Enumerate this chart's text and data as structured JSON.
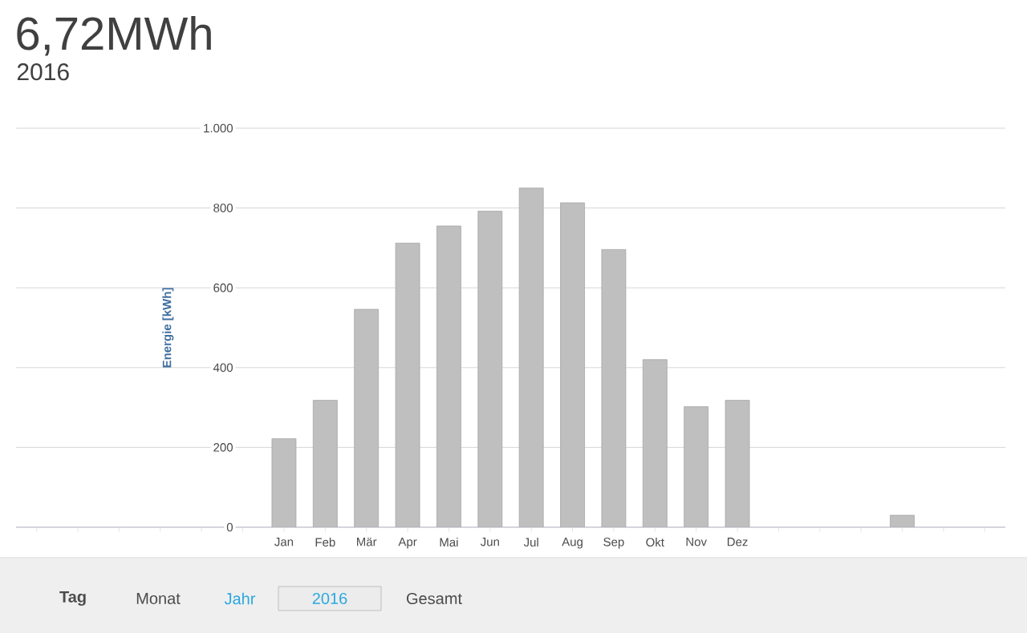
{
  "chart_data": {
    "type": "bar",
    "title": "6,72MWh",
    "subtitle": "2016",
    "ylabel": "Energie [kWh]",
    "categories": [
      null,
      null,
      null,
      null,
      null,
      null,
      "Jan",
      "Feb",
      "Mär",
      "Apr",
      "Mai",
      "Jun",
      "Jul",
      "Aug",
      "Sep",
      "Okt",
      "Nov",
      "Dez",
      null,
      null,
      null,
      null,
      null,
      null
    ],
    "values": [
      null,
      null,
      null,
      null,
      null,
      null,
      222,
      318,
      546,
      712,
      755,
      792,
      850,
      813,
      696,
      420,
      302,
      318,
      null,
      null,
      null,
      30,
      null,
      null
    ],
    "color": "#bfbfbf",
    "ylim": [
      0,
      1000
    ],
    "yticks": [
      0,
      200,
      400,
      600,
      800,
      {
        "value": 1000,
        "label": "1.000"
      }
    ],
    "grid": "y",
    "annotations": [
      "Tag",
      "Monat",
      "Jahr",
      "2016",
      "Gesamt"
    ]
  }
}
